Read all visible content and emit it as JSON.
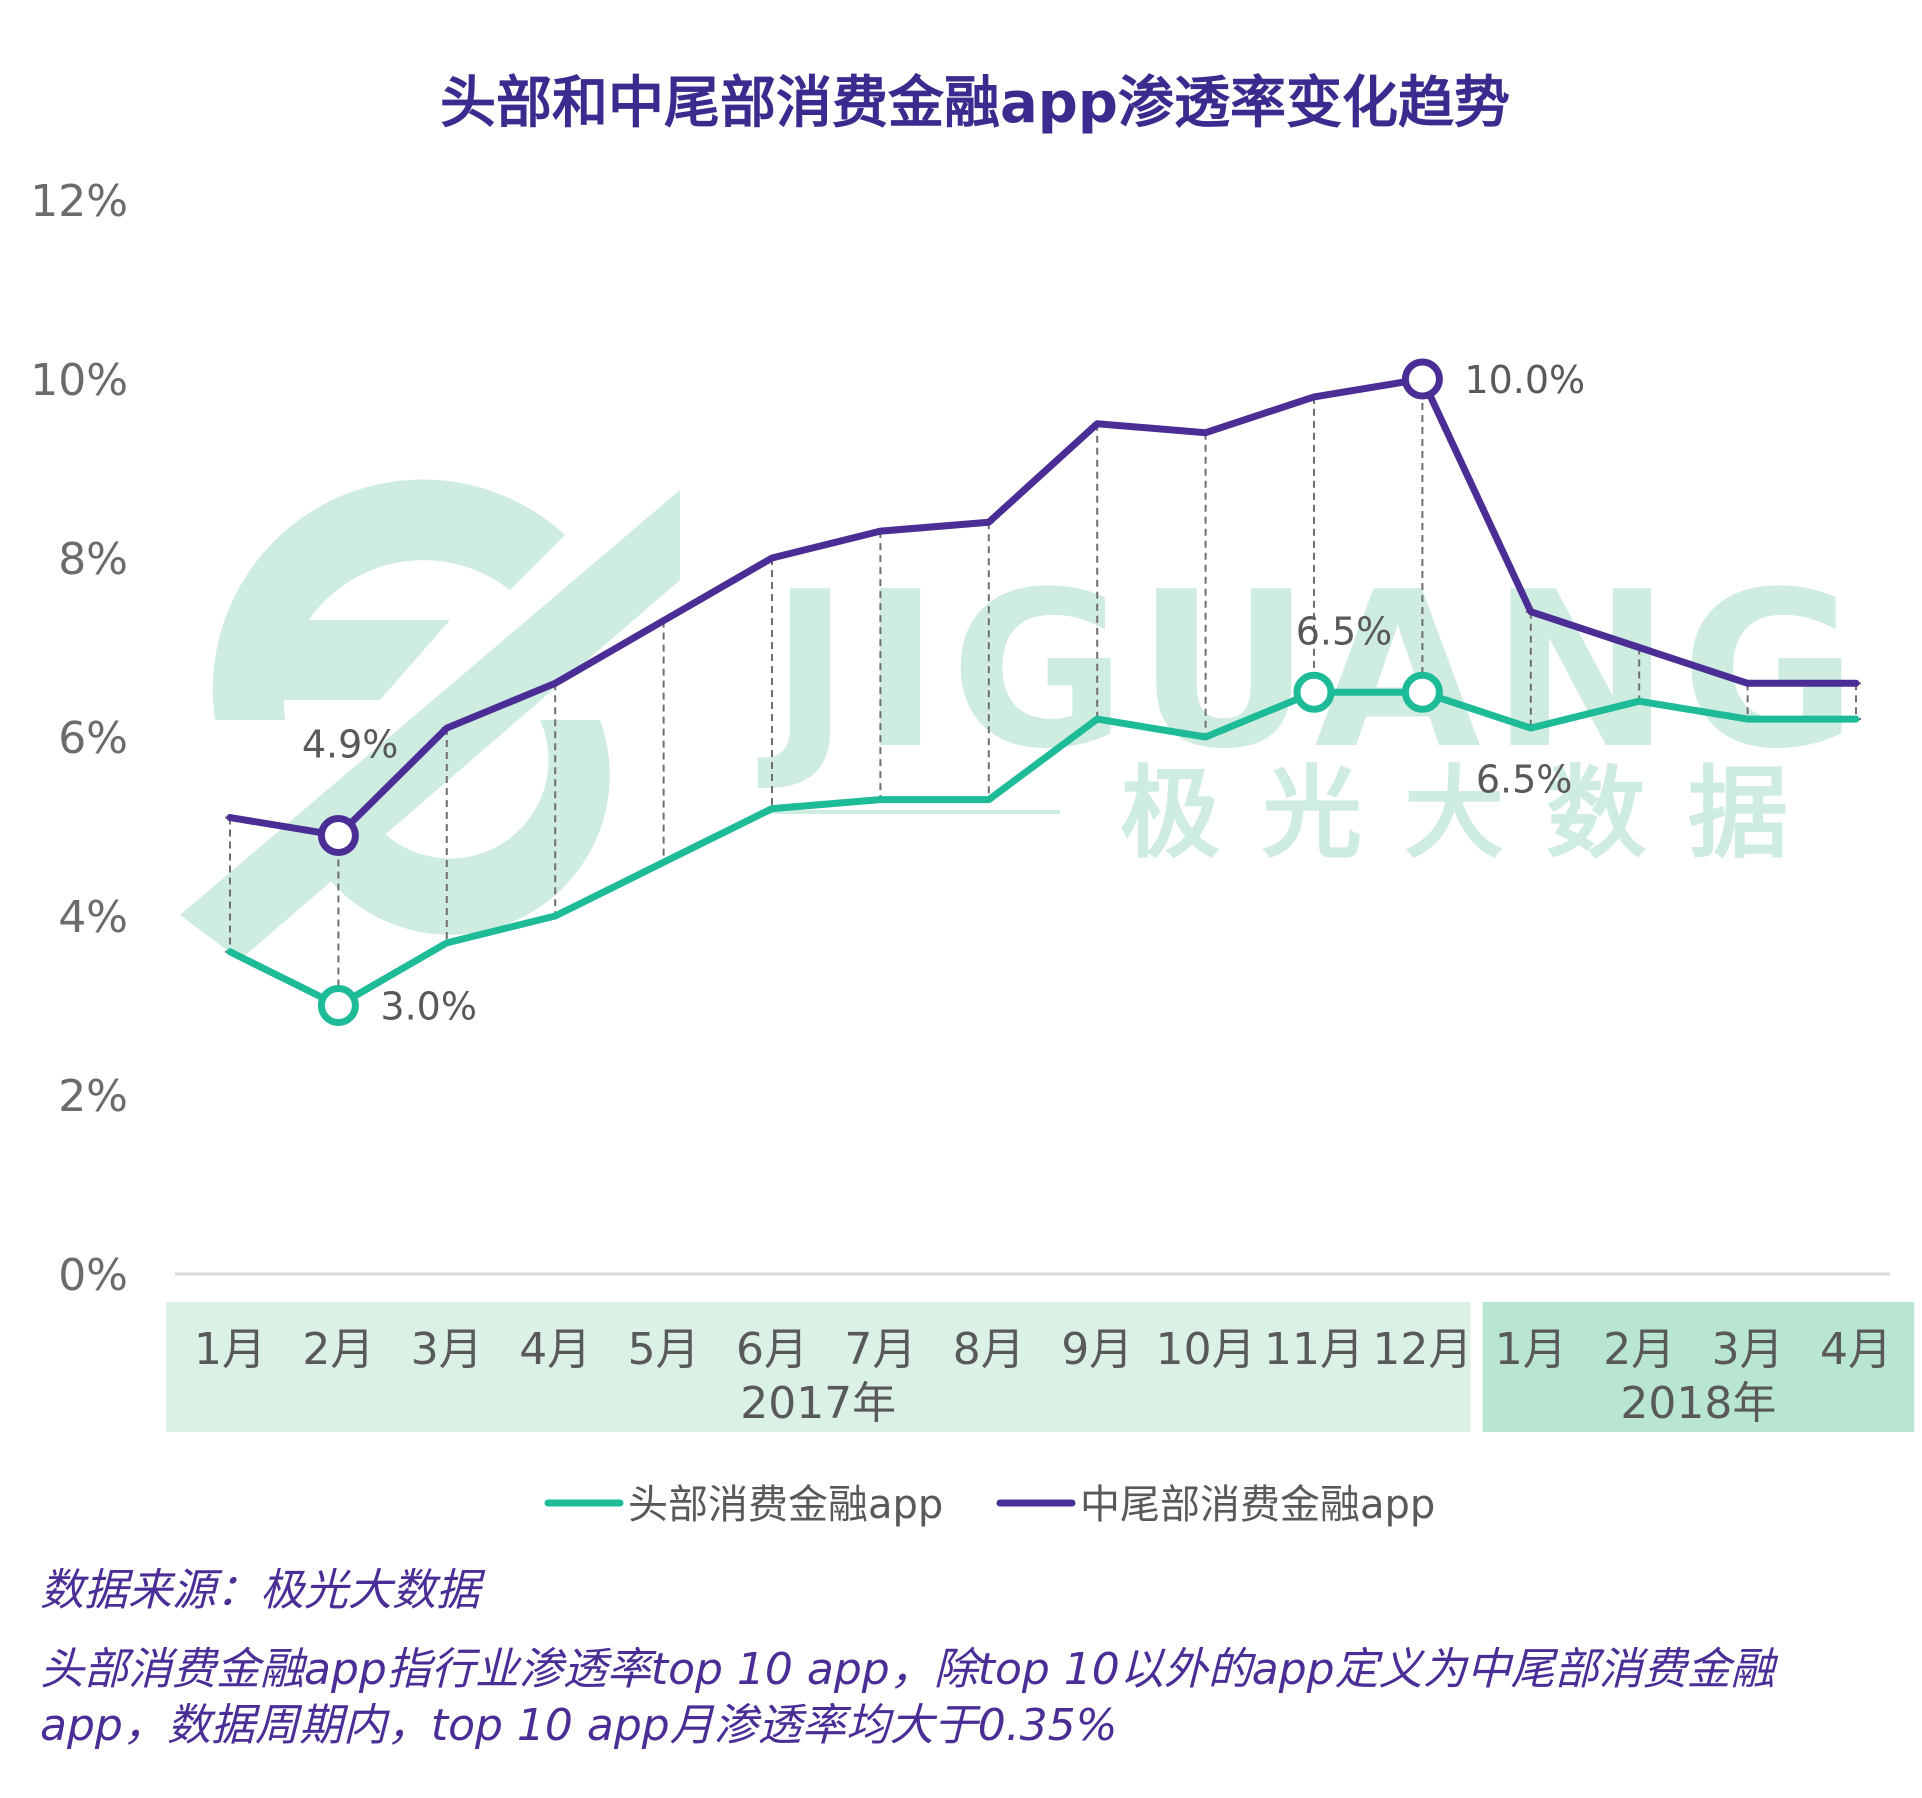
{
  "chart_data": {
    "type": "line",
    "title": "头部和中尾部消费金融app渗透率变化趋势",
    "y_ticks": [
      "12%",
      "10%",
      "8%",
      "6%",
      "4%",
      "2%",
      "0%"
    ],
    "ylim": [
      0,
      12
    ],
    "categories": [
      "1月",
      "2月",
      "3月",
      "4月",
      "5月",
      "6月",
      "7月",
      "8月",
      "9月",
      "10月",
      "11月",
      "12月",
      "1月",
      "2月",
      "3月",
      "4月"
    ],
    "year_groups": [
      {
        "label": "2017年",
        "count": 12
      },
      {
        "label": "2018年",
        "count": 4
      }
    ],
    "series": [
      {
        "name": "头部消费金融app",
        "color": "#1dbb97",
        "values": [
          3.6,
          3.0,
          3.7,
          4.0,
          4.6,
          5.2,
          5.3,
          5.3,
          6.2,
          6.0,
          6.5,
          6.5,
          6.1,
          6.4,
          6.2,
          6.2
        ]
      },
      {
        "name": "中尾部消费金融app",
        "color": "#4a2e96",
        "values": [
          5.1,
          4.9,
          6.1,
          6.6,
          7.3,
          8.0,
          8.3,
          8.4,
          9.5,
          9.4,
          9.8,
          10.0,
          7.4,
          7.0,
          6.6,
          6.6
        ]
      }
    ],
    "annotations": [
      {
        "series": 0,
        "index": 1,
        "label": "3.0%"
      },
      {
        "series": 0,
        "index": 10,
        "label": "6.5%"
      },
      {
        "series": 0,
        "index": 11,
        "label": "6.5%"
      },
      {
        "series": 1,
        "index": 1,
        "label": "4.9%"
      },
      {
        "series": 1,
        "index": 11,
        "label": "10.0%"
      }
    ],
    "legend_position": "bottom",
    "grid": false
  },
  "watermark": {
    "brand_text": "JIGUANG",
    "cn_text": "极光大数据"
  },
  "source_note": "数据来源：极光大数据",
  "footnote": "头部消费金融app指行业渗透率top 10 app，除top 10以外的app定义为中尾部消费金融app，数据周期内，top 10 app月渗透率均大于0.35%",
  "colors": {
    "title": "#3d2a8f",
    "axis_text": "#6b6b6b",
    "band_2017": "#dbf1e6",
    "band_2018": "#b9e6d1",
    "note": "#4a2e96",
    "watermark": "#cfece0"
  }
}
